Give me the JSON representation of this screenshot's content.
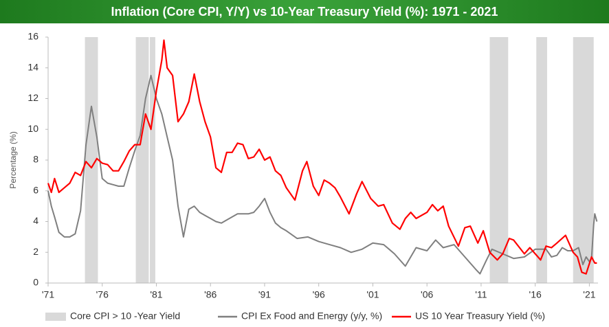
{
  "chart_data": {
    "type": "line",
    "title": "Inflation (Core CPI, Y/Y) vs 10-Year Treasury Yield (%): 1971 - 2021",
    "y_label": "Percentage (%)",
    "xlim": [
      1971,
      2021.8
    ],
    "xticks": [
      {
        "value": 1971,
        "label": "'71"
      },
      {
        "value": 1976,
        "label": "'76"
      },
      {
        "value": 1981,
        "label": "'81"
      },
      {
        "value": 1986,
        "label": "'86"
      },
      {
        "value": 1991,
        "label": "'91"
      },
      {
        "value": 1996,
        "label": "'96"
      },
      {
        "value": 2001,
        "label": "'01"
      },
      {
        "value": 2006,
        "label": "'06"
      },
      {
        "value": 2011,
        "label": "'11"
      },
      {
        "value": 2016,
        "label": "'16"
      },
      {
        "value": 2021,
        "label": "'21"
      }
    ],
    "ylim": [
      0,
      16
    ],
    "yticks": [
      0,
      2,
      4,
      6,
      8,
      10,
      12,
      14,
      16
    ],
    "grid": false,
    "legend": "bottom",
    "shaded_regions": {
      "name": "Core CPI > 10 -Year Yield",
      "color": "#d9d9d9",
      "ranges": [
        [
          1974.4,
          1975.6
        ],
        [
          1979.1,
          1980.3
        ],
        [
          1980.4,
          1980.9
        ],
        [
          2011.8,
          2013.5
        ],
        [
          2016.1,
          2017.1
        ],
        [
          2019.5,
          2021.4
        ]
      ]
    },
    "series": [
      {
        "name": "CPI Ex Food and Energy (y/y, %)",
        "color": "#7f7f7f",
        "x": [
          1971.0,
          1971.3,
          1971.6,
          1972.0,
          1972.5,
          1973.0,
          1973.5,
          1974.0,
          1974.5,
          1975.0,
          1975.5,
          1976.0,
          1976.5,
          1977.0,
          1977.5,
          1978.0,
          1978.5,
          1979.0,
          1979.5,
          1980.0,
          1980.5,
          1981.0,
          1981.5,
          1982.0,
          1982.5,
          1983.0,
          1983.5,
          1984.0,
          1984.5,
          1985.0,
          1985.5,
          1986.0,
          1986.5,
          1987.0,
          1987.5,
          1988.0,
          1988.5,
          1989.0,
          1989.5,
          1990.0,
          1990.5,
          1991.0,
          1991.5,
          1992.0,
          1992.5,
          1993.0,
          1994.0,
          1995.0,
          1996.0,
          1997.0,
          1998.0,
          1999.0,
          2000.0,
          2001.0,
          2002.0,
          2002.5,
          2003.0,
          2004.0,
          2005.0,
          2006.0,
          2006.8,
          2007.5,
          2008.5,
          2009.5,
          2010.5,
          2010.9,
          2011.5,
          2012.0,
          2013.0,
          2014.0,
          2015.0,
          2016.0,
          2017.0,
          2017.5,
          2018.0,
          2018.5,
          2019.0,
          2019.5,
          2020.0,
          2020.4,
          2020.7,
          2021.0,
          2021.2,
          2021.4,
          2021.5,
          2021.7
        ],
        "values": [
          6.0,
          5.0,
          4.3,
          3.3,
          3.0,
          3.0,
          3.2,
          4.7,
          9.0,
          11.5,
          9.5,
          6.8,
          6.5,
          6.4,
          6.3,
          6.3,
          7.5,
          8.6,
          9.6,
          12.0,
          13.5,
          12.0,
          11.0,
          9.5,
          8.0,
          5.0,
          3.0,
          4.8,
          5.0,
          4.6,
          4.4,
          4.2,
          4.0,
          3.9,
          4.1,
          4.3,
          4.5,
          4.5,
          4.5,
          4.6,
          5.0,
          5.5,
          4.6,
          3.9,
          3.6,
          3.4,
          2.9,
          3.0,
          2.7,
          2.5,
          2.3,
          2.0,
          2.2,
          2.6,
          2.5,
          2.2,
          1.9,
          1.1,
          2.3,
          2.1,
          2.8,
          2.3,
          2.5,
          1.7,
          0.9,
          0.6,
          1.5,
          2.2,
          1.9,
          1.6,
          1.7,
          2.2,
          2.2,
          1.7,
          1.8,
          2.3,
          2.1,
          2.1,
          2.3,
          1.2,
          1.7,
          1.4,
          1.6,
          3.8,
          4.5,
          4.0
        ]
      },
      {
        "name": "US 10 Year Treasury Yield (%)",
        "color": "#ff0000",
        "x": [
          1971.0,
          1971.3,
          1971.6,
          1972.0,
          1972.5,
          1973.0,
          1973.5,
          1974.0,
          1974.5,
          1975.0,
          1975.5,
          1976.0,
          1976.5,
          1977.0,
          1977.5,
          1978.0,
          1978.5,
          1979.0,
          1979.5,
          1980.0,
          1980.5,
          1981.0,
          1981.5,
          1981.7,
          1982.0,
          1982.5,
          1983.0,
          1983.5,
          1984.0,
          1984.5,
          1985.0,
          1985.5,
          1986.0,
          1986.5,
          1987.0,
          1987.5,
          1988.0,
          1988.5,
          1989.0,
          1989.5,
          1990.0,
          1990.5,
          1991.0,
          1991.5,
          1992.0,
          1992.5,
          1993.0,
          1993.8,
          1994.5,
          1994.9,
          1995.5,
          1996.0,
          1996.5,
          1997.0,
          1997.5,
          1998.0,
          1998.8,
          1999.5,
          2000.0,
          2000.8,
          2001.5,
          2002.0,
          2002.8,
          2003.5,
          2004.0,
          2004.5,
          2005.0,
          2006.0,
          2006.5,
          2007.0,
          2007.5,
          2008.0,
          2008.9,
          2009.5,
          2010.0,
          2010.7,
          2011.2,
          2011.8,
          2012.5,
          2013.0,
          2013.6,
          2014.0,
          2015.0,
          2015.5,
          2016.5,
          2017.0,
          2017.5,
          2018.0,
          2018.8,
          2019.5,
          2019.9,
          2020.3,
          2020.7,
          2021.2,
          2021.5,
          2021.7
        ],
        "values": [
          6.5,
          5.9,
          6.8,
          5.9,
          6.2,
          6.5,
          7.2,
          7.0,
          7.9,
          7.5,
          8.1,
          7.8,
          7.7,
          7.3,
          7.3,
          7.9,
          8.6,
          9.0,
          9.0,
          11.0,
          10.0,
          12.5,
          14.5,
          15.8,
          14.0,
          13.5,
          10.5,
          11.0,
          11.8,
          13.6,
          11.8,
          10.5,
          9.5,
          7.5,
          7.2,
          8.5,
          8.5,
          9.1,
          9.0,
          8.1,
          8.2,
          8.7,
          8.0,
          8.2,
          7.3,
          7.0,
          6.2,
          5.4,
          7.3,
          7.9,
          6.3,
          5.7,
          6.7,
          6.5,
          6.2,
          5.6,
          4.5,
          5.8,
          6.6,
          5.5,
          5.0,
          5.1,
          3.9,
          3.5,
          4.2,
          4.6,
          4.2,
          4.6,
          5.1,
          4.7,
          5.0,
          3.7,
          2.4,
          3.6,
          3.7,
          2.6,
          3.4,
          2.0,
          1.5,
          1.9,
          2.9,
          2.8,
          1.9,
          2.3,
          1.5,
          2.4,
          2.3,
          2.6,
          3.1,
          2.0,
          1.7,
          0.7,
          0.6,
          1.7,
          1.3,
          1.3
        ]
      }
    ]
  }
}
